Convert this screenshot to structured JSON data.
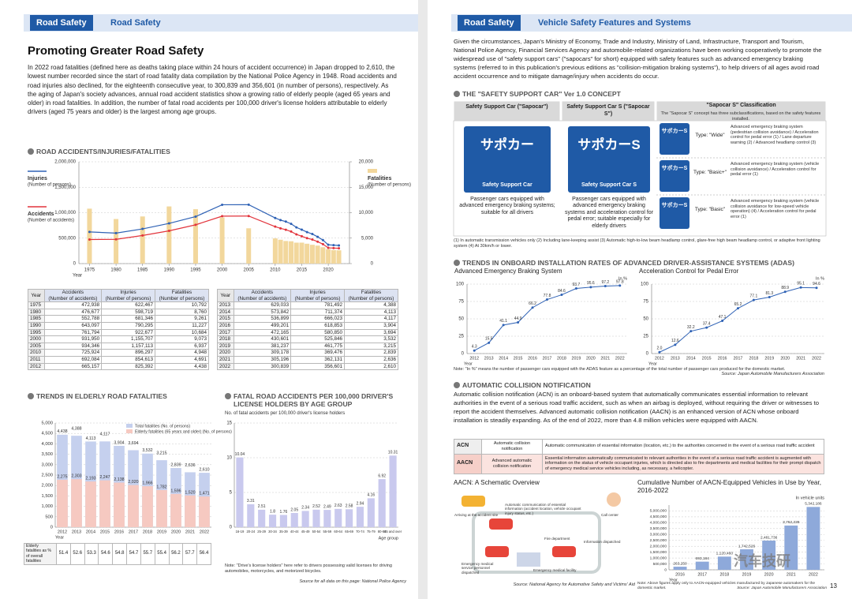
{
  "left": {
    "tabs": [
      "Road Safety",
      "Road Safety"
    ],
    "title": "Promoting Greater Road Safety",
    "intro": "In 2022 road fatalities (defined here as deaths taking place within 24 hours of accident occurrence) in Japan dropped to 2,610, the lowest number recorded since the start of road fatality data compilation by the National Police Agency in 1948. Road accidents and road injuries also declined, for the eighteenth consecutive year, to 300,839 and 356,601 (in number of persons), respectively. As the aging of Japan's society advances, annual road accident statistics show a growing ratio of elderly people (aged 65 years and older) in road fatalities. In addition, the number of fatal road accidents per 100,000 driver's license holders attributable to elderly drivers (aged 75 years and older) is the largest among age groups.",
    "chart_accidents": {
      "type": "combo",
      "title": "ROAD ACCIDENTS/INJURIES/FATALITIES",
      "x": [
        1975,
        1980,
        1985,
        1990,
        1995,
        2000,
        2005,
        2010,
        2011,
        2012,
        2013,
        2014,
        2015,
        2016,
        2017,
        2018,
        2019,
        2020,
        2021,
        2022
      ],
      "xlim": [
        1973,
        2024
      ],
      "xticks": [
        1975,
        1980,
        1985,
        1990,
        1995,
        2000,
        2005,
        2010,
        2015,
        2020
      ],
      "xlabel": "Year",
      "ylim": [
        0,
        2000000
      ],
      "yticks": [
        0,
        {
          "value": 500000,
          "label": "500,000"
        },
        {
          "value": 1000000,
          "label": "1,000,000"
        },
        {
          "value": 1500000,
          "label": "1,500,000"
        },
        {
          "value": 2000000,
          "label": "2,000,000"
        }
      ],
      "y2lim": [
        0,
        20000
      ],
      "y2ticks": [
        0,
        {
          "value": 5000,
          "label": "5,000"
        },
        {
          "value": 10000,
          "label": "10,000"
        },
        {
          "value": 15000,
          "label": "15,000"
        },
        {
          "value": 20000,
          "label": "20,000"
        }
      ],
      "grid": true,
      "series": [
        {
          "name": "Injuries",
          "unit": "(Number of persons)",
          "type": "line",
          "color": "#2f62b5",
          "values": [
            622467,
            598719,
            681346,
            790295,
            922677,
            1155707,
            1157113,
            896297,
            854613,
            825392,
            781492,
            711374,
            666023,
            618853,
            580850,
            525846,
            461775,
            369476,
            362131,
            356601
          ]
        },
        {
          "name": "Accidents",
          "unit": "(Number of accidents)",
          "type": "line",
          "color": "#e2343c",
          "values": [
            472938,
            476677,
            552788,
            643097,
            761794,
            931950,
            934346,
            725924,
            692084,
            665157,
            629033,
            573842,
            536899,
            499201,
            472165,
            430601,
            381237,
            309178,
            305196,
            300839
          ]
        },
        {
          "name": "Fatalities",
          "unit": "(Number of persons)",
          "type": "bar",
          "axis": "y2",
          "color": "#f2d79c",
          "values": [
            10792,
            8760,
            9261,
            11227,
            10684,
            9073,
            6937,
            4948,
            4691,
            4438,
            4388,
            4113,
            4117,
            3904,
            3694,
            3532,
            3215,
            2839,
            2636,
            2610
          ]
        }
      ]
    },
    "table": {
      "headers": [
        {
          "name": "Year"
        },
        {
          "name": "Accidents",
          "unit": "(Number of accidents)"
        },
        {
          "name": "Injuries",
          "unit": "(Number of persons)"
        },
        {
          "name": "Fatalities",
          "unit": "(Number of persons)"
        }
      ],
      "rows_left": [
        [
          "1975",
          "472,938",
          "622,467",
          "10,792"
        ],
        [
          "1980",
          "476,677",
          "598,719",
          "8,760"
        ],
        [
          "1985",
          "552,788",
          "681,346",
          "9,261"
        ],
        [
          "1990",
          "643,097",
          "790,295",
          "11,227"
        ],
        [
          "1995",
          "761,794",
          "922,677",
          "10,684"
        ],
        [
          "2000",
          "931,950",
          "1,155,707",
          "9,073"
        ],
        [
          "2005",
          "934,346",
          "1,157,113",
          "6,937"
        ],
        [
          "2010",
          "725,924",
          "896,297",
          "4,948"
        ],
        [
          "2011",
          "692,084",
          "854,613",
          "4,691"
        ],
        [
          "2012",
          "665,157",
          "825,392",
          "4,438"
        ]
      ],
      "rows_right": [
        [
          "2013",
          "629,033",
          "781,492",
          "4,388"
        ],
        [
          "2014",
          "573,842",
          "711,374",
          "4,113"
        ],
        [
          "2015",
          "536,899",
          "666,023",
          "4,117"
        ],
        [
          "2016",
          "499,201",
          "618,853",
          "3,904"
        ],
        [
          "2017",
          "472,165",
          "580,850",
          "3,694"
        ],
        [
          "2018",
          "430,601",
          "525,846",
          "3,532"
        ],
        [
          "2019",
          "381,237",
          "461,775",
          "3,215"
        ],
        [
          "2020",
          "309,178",
          "369,476",
          "2,839"
        ],
        [
          "2021",
          "305,196",
          "362,131",
          "2,636"
        ],
        [
          "2022",
          "300,839",
          "356,601",
          "2,610"
        ]
      ]
    },
    "chart_elderly": {
      "type": "bar",
      "title": "TRENDS IN ELDERLY ROAD FATALITIES",
      "categories": [
        "2012",
        "2013",
        "2014",
        "2015",
        "2016",
        "2017",
        "2018",
        "2019",
        "2020",
        "2021",
        "2022"
      ],
      "xlabel": "Year",
      "ylim": [
        0,
        5000
      ],
      "yticks": [
        0,
        500,
        {
          "value": 1000,
          "label": "1,000"
        },
        {
          "value": 1500,
          "label": "1,500"
        },
        {
          "value": 2000,
          "label": "2,000"
        },
        {
          "value": 2500,
          "label": "2,500"
        },
        {
          "value": 3000,
          "label": "3,000"
        },
        {
          "value": 3500,
          "label": "3,500"
        },
        {
          "value": 4000,
          "label": "4,000"
        },
        {
          "value": 4500,
          "label": "4,500"
        },
        {
          "value": 5000,
          "label": "5,000"
        }
      ],
      "grid": true,
      "series": [
        {
          "name": "Total fatalities (No. of persons)",
          "color": "#c5d0ee",
          "values": [
            4438,
            4388,
            4113,
            4117,
            3904,
            3694,
            3532,
            3215,
            2839,
            2636,
            2610
          ],
          "value_labels": [
            "4,438",
            "4,388",
            "4,113",
            "4,117",
            "3,904",
            "3,694",
            "3,532",
            "3,215",
            "2,839",
            "2,636",
            "2,610"
          ]
        },
        {
          "name": "Elderly fatalities (65 years and older) (No. of persons)",
          "color": "#f6c9c1",
          "values": [
            2275,
            2303,
            2193,
            2247,
            2138,
            2020,
            1966,
            1782,
            1596,
            1520,
            1471
          ],
          "value_labels": [
            "2,275",
            "2,303",
            "2,193",
            "2,247",
            "2,138",
            "2,020",
            "1,966",
            "1,782",
            "1,596",
            "1,520",
            "1,471"
          ]
        }
      ]
    },
    "elderly_share": {
      "label": "Elderly fatalities as % of overall fatalities",
      "values": [
        51.4,
        52.6,
        53.3,
        54.6,
        54.8,
        54.7,
        55.7,
        55.4,
        56.2,
        57.7,
        56.4
      ]
    },
    "chart_license": {
      "type": "bar",
      "title": "FATAL ROAD ACCIDENTS PER 100,000 DRIVER'S LICENSE HOLDERS BY AGE GROUP",
      "subtitle": "No. of fatal accidents per 100,000 driver's license holders",
      "categories": [
        "16-19",
        "20-24",
        "25-29",
        "30-34",
        "35-39",
        "40-44",
        "45-49",
        "50-54",
        "55-59",
        "60-64",
        "65-69",
        "70-74",
        "75-79",
        "80-84",
        "85 and over"
      ],
      "values": [
        10.04,
        3.31,
        2.51,
        1.8,
        1.76,
        2.05,
        2.34,
        2.52,
        2.49,
        2.63,
        2.58,
        2.94,
        4.16,
        6.92,
        10.31
      ],
      "color": "#c9c9ee",
      "xlabel": "Age group",
      "ylim": [
        0,
        15
      ],
      "yticks": [
        0,
        5,
        10,
        15
      ],
      "grid": true
    },
    "license_note": "Note: \"Drive's license holders\" here refer to drivers possessing valid licenses for driving automobiles, motorcycles, and motorized bicycles.",
    "source": "Source for all data on this page: National Police Agency"
  },
  "right": {
    "tabs": [
      "Road Safety",
      "Vehicle Safety Features and Systems"
    ],
    "intro": "Given the circumstances, Japan's Ministry of Economy, Trade and Industry, Ministry of Land, Infrastructure, Transport and Tourism, National Police Agency, Financial Services Agency and automobile-related organizations have been working cooperatively to promote the widespread use of \"safety support cars\" (\"sapocars\" for short) equipped with safety features such as advanced emergency braking systems (referred to in this publication's previous editions as \"collision-mitigation braking systems\"), to help drivers of all ages avoid road accident occurrence and to mitigate damage/injury when accidents do occur.",
    "sapocar": {
      "title": "THE \"SAFETY SUPPORT CAR\" Ver 1.0 CONCEPT",
      "col_heads": [
        "Safety Support Car (\"Sapocar\")",
        "Safety Support Car S (\"Sapocar S\")",
        "\"Sapocar S\" Classification"
      ],
      "class_note": "The \"Sapocar S\" concept has three subclassifications, based on the safety features installed.",
      "logos": [
        {
          "jp": "サポカー",
          "en": "Safety Support Car"
        },
        {
          "jp": "サポカーS",
          "en": "Safety Support Car S"
        }
      ],
      "descs": [
        "Passenger cars equipped with advanced emergency braking systems; suitable for all drivers",
        "Passenger cars equipped with advanced emergency braking systems and acceleration control for pedal error; suitable especially for elderly drivers"
      ],
      "classes": [
        {
          "type": "Type: \"Wide\"",
          "items": "Advanced emergency braking system (pedestrian collision avoidance) / Acceleration control for pedal error (1) / Lane departure warning (2) / Advanced headlamp control (3)"
        },
        {
          "type": "Type: \"Basic+\"",
          "items": "Advanced emergency braking system (vehicle collision avoidance) / Acceleration control for pedal error (1)"
        },
        {
          "type": "Type: \"Basic\"",
          "items": "Advanced emergency braking system (vehicle collision avoidance for low-speed vehicle operation) (4) / Acceleration control for pedal error (1)"
        }
      ],
      "footnote": "(1) In automatic transmission vehicles only (2) Including lane-keeping assist (3) Automatic high-to-low beam headlamp control, glare-free high beam headlamp control, or adaptive front lighting system (4) At 30km/h or lower."
    },
    "adas": {
      "title": "TRENDS IN ONBOARD INSTALLATION RATES OF ADVANCED DRIVER-ASSISTANCE SYSTEMS (ADAS)",
      "unit": "In %",
      "xlabel": "Year",
      "charts": [
        {
          "type": "line",
          "title": "Advanced Emergency Braking System",
          "categories": [
            "2012",
            "2013",
            "2014",
            "2015",
            "2016",
            "2017",
            "2018",
            "2019",
            "2020",
            "2021",
            "2022"
          ],
          "values": [
            4.3,
            15.5,
            41.1,
            44.9,
            66.2,
            77.8,
            84.6,
            93.7,
            95.6,
            97.2,
            97.8
          ],
          "color": "#2f62b5",
          "ylim": [
            0,
            100
          ],
          "yticks": [
            0,
            25,
            50,
            75,
            100
          ],
          "grid": true
        },
        {
          "type": "line",
          "title": "Acceleration Control for Pedal Error",
          "categories": [
            "2012",
            "2013",
            "2014",
            "2015",
            "2016",
            "2017",
            "2018",
            "2019",
            "2020",
            "2021",
            "2022"
          ],
          "values": [
            2,
            12.6,
            32.2,
            37.4,
            47.1,
            65.2,
            77.1,
            81.3,
            88.9,
            95.1,
            94.6
          ],
          "value_labels": [
            "2.0",
            "12.6",
            "32.2",
            "37.4",
            "47.1",
            "65.2",
            "77.1",
            "81.3",
            "88.9",
            "95.1",
            "94.6"
          ],
          "color": "#2f62b5",
          "ylim": [
            0,
            100
          ],
          "yticks": [
            0,
            25,
            50,
            75,
            100
          ],
          "grid": true
        }
      ],
      "note": "Note: \"In %\" means the number of passenger cars equipped with the ADAS feature as a percentage of the total number of passenger cars produced for the domestic market.",
      "source": "Source: Japan Automobile Manufacturers Association"
    },
    "acn": {
      "title": "AUTOMATIC COLLISION NOTIFICATION",
      "text": "Automatic collision notification (ACN) is an onboard-based system that automatically communicates essential information to relevant authorities in the event of a serious road traffic accident, such as when an airbag is deployed, without requiring the driver or witnesses to report the accident themselves. Advanced automatic collision notification (AACN) is an enhanced version of ACN whose onboard installation is steadily expanding. As of the end of 2022, more than 4.8 million vehicles were equipped with AACN.",
      "rows": [
        [
          "ACN",
          "Automatic collision notification",
          "Automatic communication of essential information (location, etc.) to the authorities concerned in the event of a serious road traffic accident"
        ],
        [
          "AACN",
          "Advanced automatic collision notification",
          "Essential information automatically communicated to relevant authorities in the event of a serious road traffic accident is augmented with information on the status of vehicle occupant injuries, which is directed also to fire departments and medical facilities for their prompt dispatch of emergency medical service vehicles including, as necessary, a helicopter."
        ]
      ]
    },
    "schematic": {
      "title": "AACN: A Schematic Overview",
      "labels": [
        "Automatic communication of essential information (accident location, vehicle occupant injury status, etc.)",
        "Call center",
        "Fire department",
        "Information dispatched",
        "Emergency medical service personnel dispatched",
        "Emergency medical facility",
        "Arriving at the accident site"
      ],
      "source": "Source: National Agency for Automotive Safety and Victims' Aid"
    },
    "chart_aacn": {
      "type": "bar",
      "title": "Cumulative Number of AACN-Equipped Vehicles in Use by Year, 2016-2022",
      "unit": "In vehicle units",
      "categories": [
        "2016",
        "2017",
        "2018",
        "2019",
        "2020",
        "2021",
        "2022"
      ],
      "values": [
        263250,
        693184,
        1120460,
        1742526,
        2481736,
        3762239,
        5342186
      ],
      "value_labels": [
        "263,250",
        "693,184",
        "1,120,460",
        "1,742,526",
        "2,481,736",
        "3,762,239",
        "5,342,186"
      ],
      "color": "#8ea9da",
      "xlabel": "Year",
      "ylim": [
        0,
        5500000
      ],
      "yticks": [
        0,
        {
          "value": 500000,
          "label": "500,000"
        },
        {
          "value": 1000000,
          "label": "1,000,000"
        },
        {
          "value": 1500000,
          "label": "1,500,000"
        },
        {
          "value": 2000000,
          "label": "2,000,000"
        },
        {
          "value": 2500000,
          "label": "2,500,000"
        },
        {
          "value": 3000000,
          "label": "3,000,000"
        },
        {
          "value": 3500000,
          "label": "3,500,000"
        },
        {
          "value": 4000000,
          "label": "4,000,000"
        },
        {
          "value": 4500000,
          "label": "4,500,000"
        },
        {
          "value": 5000000,
          "label": "5,000,000"
        }
      ],
      "grid": true,
      "note": "Note: Above figures apply only to AACN-equipped vehicles manufactured by Japanese automakers for the domestic market.",
      "source": "Source: Japan Automobile Manufacturers Association"
    },
    "watermark": "汽车技研",
    "page_number": "13"
  }
}
